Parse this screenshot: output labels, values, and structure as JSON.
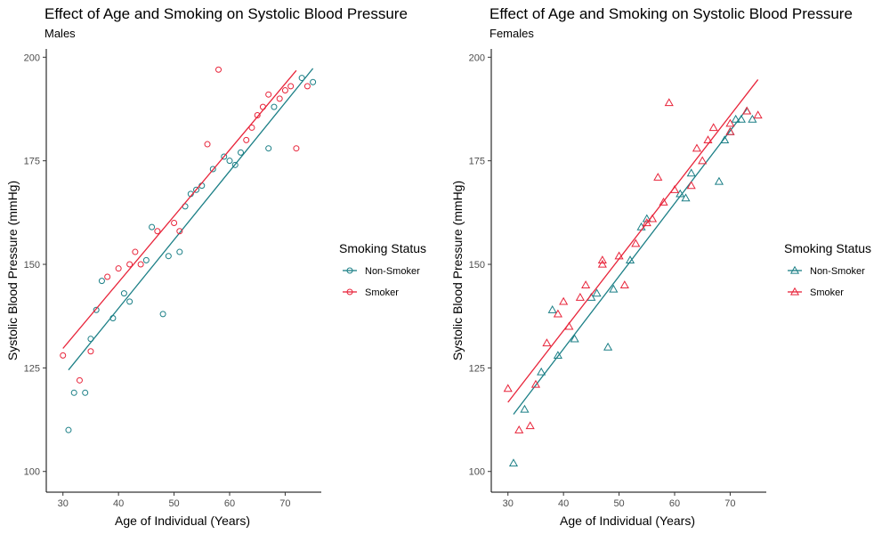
{
  "chart_data": [
    {
      "type": "scatter",
      "title": "Effect of Age and Smoking on Systolic Blood Pressure",
      "subtitle": "Males",
      "xlabel": "Age of Individual (Years)",
      "ylabel": "Systolic Blood Pressure (mmHg)",
      "xlim": [
        27,
        76.5
      ],
      "ylim": [
        95,
        202
      ],
      "xticks": [
        30,
        40,
        50,
        60,
        70
      ],
      "yticks": [
        100,
        125,
        150,
        175,
        200
      ],
      "marker": "circle",
      "grid": false,
      "legend": {
        "title": "Smoking Status",
        "placement": "right"
      },
      "series": [
        {
          "name": "Non-Smoker",
          "color": "#1b7f86",
          "points": [
            [
              31,
              110
            ],
            [
              32,
              119
            ],
            [
              34,
              119
            ],
            [
              35,
              132
            ],
            [
              36,
              139
            ],
            [
              37,
              146
            ],
            [
              39,
              137
            ],
            [
              41,
              143
            ],
            [
              42,
              141
            ],
            [
              45,
              151
            ],
            [
              46,
              159
            ],
            [
              48,
              138
            ],
            [
              49,
              152
            ],
            [
              51,
              153
            ],
            [
              52,
              164
            ],
            [
              53,
              167
            ],
            [
              54,
              168
            ],
            [
              55,
              169
            ],
            [
              57,
              173
            ],
            [
              59,
              176
            ],
            [
              60,
              175
            ],
            [
              61,
              174
            ],
            [
              62,
              177
            ],
            [
              67,
              178
            ],
            [
              68,
              188
            ],
            [
              73,
              195
            ],
            [
              75,
              194
            ]
          ],
          "fit": [
            [
              31,
              124.5
            ],
            [
              75,
              197.3
            ]
          ]
        },
        {
          "name": "Smoker",
          "color": "#e8243a",
          "points": [
            [
              30,
              128
            ],
            [
              33,
              122
            ],
            [
              35,
              129
            ],
            [
              38,
              147
            ],
            [
              40,
              149
            ],
            [
              42,
              150
            ],
            [
              43,
              153
            ],
            [
              44,
              150
            ],
            [
              47,
              158
            ],
            [
              50,
              160
            ],
            [
              51,
              158
            ],
            [
              56,
              179
            ],
            [
              58,
              197
            ],
            [
              63,
              180
            ],
            [
              64,
              183
            ],
            [
              65,
              186
            ],
            [
              66,
              188
            ],
            [
              67,
              191
            ],
            [
              69,
              190
            ],
            [
              70,
              192
            ],
            [
              71,
              193
            ],
            [
              72,
              178
            ],
            [
              74,
              193
            ]
          ],
          "fit": [
            [
              30,
              129.7
            ],
            [
              72,
              196.8
            ]
          ]
        }
      ]
    },
    {
      "type": "scatter",
      "title": "Effect of Age and Smoking on Systolic Blood Pressure",
      "subtitle": "Females",
      "xlabel": "Age of Individual (Years)",
      "ylabel": "Systolic Blood Pressure (mmHg)",
      "xlim": [
        27,
        76.5
      ],
      "ylim": [
        95,
        202
      ],
      "xticks": [
        30,
        40,
        50,
        60,
        70
      ],
      "yticks": [
        100,
        125,
        150,
        175,
        200
      ],
      "marker": "triangle",
      "grid": false,
      "legend": {
        "title": "Smoking Status",
        "placement": "right"
      },
      "series": [
        {
          "name": "Non-Smoker",
          "color": "#1b7f86",
          "points": [
            [
              31,
              102
            ],
            [
              33,
              115
            ],
            [
              36,
              124
            ],
            [
              38,
              139
            ],
            [
              39,
              128
            ],
            [
              42,
              132
            ],
            [
              45,
              142
            ],
            [
              46,
              143
            ],
            [
              48,
              130
            ],
            [
              49,
              144
            ],
            [
              52,
              151
            ],
            [
              54,
              159
            ],
            [
              55,
              161
            ],
            [
              61,
              167
            ],
            [
              62,
              166
            ],
            [
              63,
              172
            ],
            [
              68,
              170
            ],
            [
              69,
              180
            ],
            [
              70,
              182
            ],
            [
              71,
              185
            ],
            [
              72,
              185
            ],
            [
              73,
              187
            ],
            [
              74,
              185
            ]
          ],
          "fit": [
            [
              31,
              113.8
            ],
            [
              73,
              187.5
            ]
          ]
        },
        {
          "name": "Smoker",
          "color": "#e8243a",
          "points": [
            [
              30,
              120
            ],
            [
              32,
              110
            ],
            [
              34,
              111
            ],
            [
              35,
              121
            ],
            [
              37,
              131
            ],
            [
              39,
              138
            ],
            [
              40,
              141
            ],
            [
              41,
              135
            ],
            [
              43,
              142
            ],
            [
              44,
              145
            ],
            [
              47,
              151
            ],
            [
              47,
              150
            ],
            [
              50,
              152
            ],
            [
              51,
              145
            ],
            [
              53,
              155
            ],
            [
              55,
              160
            ],
            [
              56,
              161
            ],
            [
              57,
              171
            ],
            [
              58,
              165
            ],
            [
              59,
              189
            ],
            [
              60,
              168
            ],
            [
              63,
              169
            ],
            [
              64,
              178
            ],
            [
              65,
              175
            ],
            [
              66,
              180
            ],
            [
              67,
              183
            ],
            [
              70,
              182
            ],
            [
              70,
              184
            ],
            [
              73,
              187
            ],
            [
              75,
              186
            ]
          ],
          "fit": [
            [
              30,
              116.7
            ],
            [
              75,
              194.6
            ]
          ]
        }
      ]
    }
  ]
}
